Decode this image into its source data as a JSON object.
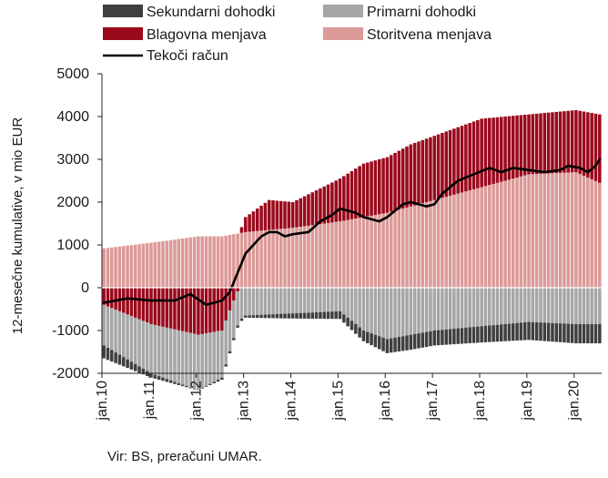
{
  "chart_data": {
    "type": "stacked-bar-with-line",
    "ylabel": "12-mesečne kumulative, v mio EUR",
    "ylim": [
      -2000,
      5000
    ],
    "yticks": [
      -2000,
      -1000,
      0,
      1000,
      2000,
      3000,
      4000,
      5000
    ],
    "x_tick_labels": [
      "jan.10",
      "jan.11",
      "jan.12",
      "jan.13",
      "jan.14",
      "jan.15",
      "jan.16",
      "jan.17",
      "jan.18",
      "jan.19",
      "jan.20"
    ],
    "x_start": "jan.10",
    "frequency": "monthly",
    "months": 127,
    "grid": false,
    "legend_position": "top",
    "source": "Vir: BS, preračuni UMAR.",
    "colors": {
      "sekundarni": "#3f3f3f",
      "primarni": "#a6a6a6",
      "blagovna": "#9b0a1c",
      "storitvena": "#dc9a98",
      "tekoci": "#000000"
    },
    "series": [
      {
        "key": "sekundarni",
        "name": "Sekundarni dohodki",
        "kind": "bar",
        "anchors": [
          [
            0,
            -300
          ],
          [
            12,
            -100
          ],
          [
            24,
            0
          ],
          [
            30,
            -50
          ],
          [
            36,
            -50
          ],
          [
            48,
            -120
          ],
          [
            60,
            -180
          ],
          [
            66,
            -250
          ],
          [
            72,
            -330
          ],
          [
            78,
            -350
          ],
          [
            84,
            -350
          ],
          [
            96,
            -380
          ],
          [
            108,
            -420
          ],
          [
            120,
            -450
          ],
          [
            126,
            -450
          ]
        ]
      },
      {
        "key": "primarni",
        "name": "Primarni dohodki",
        "kind": "bar",
        "anchors": [
          [
            0,
            -950
          ],
          [
            12,
            -1150
          ],
          [
            24,
            -1300
          ],
          [
            30,
            -1100
          ],
          [
            36,
            -650
          ],
          [
            48,
            -600
          ],
          [
            60,
            -550
          ],
          [
            66,
            -1000
          ],
          [
            72,
            -1200
          ],
          [
            78,
            -1100
          ],
          [
            84,
            -1000
          ],
          [
            96,
            -900
          ],
          [
            108,
            -800
          ],
          [
            120,
            -850
          ],
          [
            126,
            -850
          ]
        ]
      },
      {
        "key": "blagovna",
        "name": "Blagovna menjava",
        "kind": "bar",
        "anchors": [
          [
            0,
            -400
          ],
          [
            12,
            -850
          ],
          [
            24,
            -1100
          ],
          [
            30,
            -1000
          ],
          [
            33,
            -300
          ],
          [
            36,
            350
          ],
          [
            42,
            700
          ],
          [
            48,
            600
          ],
          [
            54,
            800
          ],
          [
            60,
            1000
          ],
          [
            66,
            1250
          ],
          [
            72,
            1300
          ],
          [
            78,
            1450
          ],
          [
            84,
            1500
          ],
          [
            96,
            1600
          ],
          [
            108,
            1400
          ],
          [
            120,
            1450
          ],
          [
            126,
            1600
          ]
        ]
      },
      {
        "key": "storitvena",
        "name": "Storitvena menjava",
        "kind": "bar",
        "anchors": [
          [
            0,
            920
          ],
          [
            12,
            1050
          ],
          [
            24,
            1200
          ],
          [
            30,
            1200
          ],
          [
            36,
            1300
          ],
          [
            48,
            1400
          ],
          [
            60,
            1550
          ],
          [
            72,
            1750
          ],
          [
            84,
            2050
          ],
          [
            96,
            2350
          ],
          [
            108,
            2650
          ],
          [
            120,
            2700
          ],
          [
            126,
            2450
          ]
        ]
      },
      {
        "key": "tekoci",
        "name": "Tekoči račun",
        "kind": "line",
        "anchors": [
          [
            0,
            -350
          ],
          [
            3,
            -300
          ],
          [
            6,
            -250
          ],
          [
            12,
            -300
          ],
          [
            18,
            -300
          ],
          [
            22,
            -150
          ],
          [
            26,
            -400
          ],
          [
            30,
            -300
          ],
          [
            32,
            -100
          ],
          [
            36,
            800
          ],
          [
            40,
            1200
          ],
          [
            42,
            1300
          ],
          [
            44,
            1300
          ],
          [
            46,
            1200
          ],
          [
            48,
            1250
          ],
          [
            52,
            1300
          ],
          [
            55,
            1550
          ],
          [
            58,
            1700
          ],
          [
            60,
            1850
          ],
          [
            62,
            1800
          ],
          [
            64,
            1750
          ],
          [
            66,
            1650
          ],
          [
            68,
            1600
          ],
          [
            70,
            1550
          ],
          [
            72,
            1650
          ],
          [
            74,
            1800
          ],
          [
            76,
            1950
          ],
          [
            78,
            2000
          ],
          [
            80,
            1950
          ],
          [
            82,
            1900
          ],
          [
            84,
            1950
          ],
          [
            86,
            2200
          ],
          [
            90,
            2500
          ],
          [
            94,
            2650
          ],
          [
            98,
            2800
          ],
          [
            101,
            2700
          ],
          [
            104,
            2800
          ],
          [
            108,
            2750
          ],
          [
            112,
            2700
          ],
          [
            116,
            2750
          ],
          [
            118,
            2850
          ],
          [
            121,
            2800
          ],
          [
            123,
            2700
          ],
          [
            125,
            2850
          ],
          [
            126,
            3000
          ]
        ]
      }
    ]
  }
}
